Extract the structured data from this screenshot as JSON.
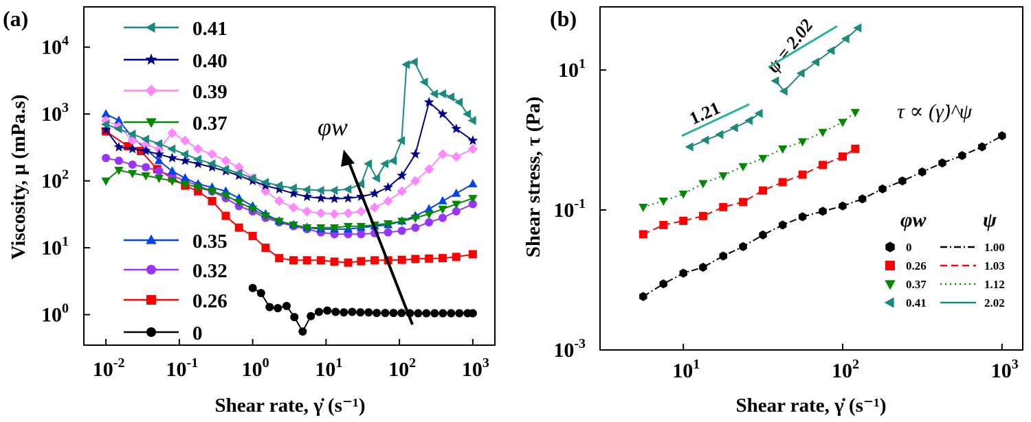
{
  "panels": {
    "a": {
      "label": "(a)"
    },
    "b": {
      "label": "(b)"
    }
  },
  "chart_data": [
    {
      "type": "scatter",
      "panel": "(a)",
      "xlabel": "Shear rate, γ̇ (s⁻¹)",
      "ylabel": "Viscosity, μ (mPa.s)",
      "xscale": "log",
      "yscale": "log",
      "xlim": [
        0.005,
        2000
      ],
      "ylim": [
        0.35,
        40000
      ],
      "xticks": [
        {
          "label": "10⁻²",
          "base": "10",
          "exp": "-2",
          "v": 0.01
        },
        {
          "label": "10⁻¹",
          "base": "10",
          "exp": "-1",
          "v": 0.1
        },
        {
          "label": "10⁰",
          "base": "10",
          "exp": "0",
          "v": 1
        },
        {
          "label": "10¹",
          "base": "10",
          "exp": "1",
          "v": 10
        },
        {
          "label": "10²",
          "base": "10",
          "exp": "2",
          "v": 100
        },
        {
          "label": "10³",
          "base": "10",
          "exp": "3",
          "v": 1000
        }
      ],
      "yticks": [
        {
          "label": "10⁰",
          "base": "10",
          "exp": "0",
          "v": 1
        },
        {
          "label": "10¹",
          "base": "10",
          "exp": "1",
          "v": 10
        },
        {
          "label": "10²",
          "base": "10",
          "exp": "2",
          "v": 100
        },
        {
          "label": "10³",
          "base": "10",
          "exp": "3",
          "v": 1000
        },
        {
          "label": "10⁴",
          "base": "10",
          "exp": "4",
          "v": 10000
        }
      ],
      "annotation": "φw",
      "legend_placement": "left",
      "series": [
        {
          "name": "0",
          "color": "#000000",
          "marker": "circle",
          "x": [
            1,
            1.3,
            1.7,
            2.2,
            2.9,
            3.7,
            4.8,
            6.2,
            8,
            10.4,
            13.5,
            17.5,
            22.7,
            29.4,
            38,
            49,
            64,
            83,
            107,
            139,
            180,
            233,
            302,
            391,
            506,
            656,
            850,
            1000
          ],
          "y": [
            2.5,
            2.1,
            1.3,
            1.25,
            1.35,
            0.92,
            0.56,
            0.95,
            1.1,
            1.15,
            1.1,
            1.08,
            1.1,
            1.08,
            1.08,
            1.06,
            1.06,
            1.06,
            1.06,
            1.05,
            1.05,
            1.05,
            1.05,
            1.05,
            1.05,
            1.05,
            1.05,
            1.05
          ]
        },
        {
          "name": "0.26",
          "color": "#ff0000",
          "marker": "square",
          "x": [
            0.01,
            0.02,
            0.03,
            0.05,
            0.08,
            0.12,
            0.18,
            0.28,
            0.43,
            0.65,
            1,
            1.5,
            2.3,
            3.6,
            5.5,
            8.5,
            13,
            20,
            30,
            46,
            70,
            108,
            165,
            253,
            388,
            595,
            1000
          ],
          "y": [
            550,
            330,
            280,
            150,
            110,
            85,
            70,
            50,
            30,
            20,
            15,
            10,
            7,
            6.5,
            6.5,
            6.5,
            6.2,
            6.0,
            6.3,
            6.5,
            6.5,
            6.6,
            6.8,
            6.9,
            7.0,
            7.3,
            8.0
          ]
        },
        {
          "name": "0.32",
          "color": "#9933ff",
          "marker": "circle",
          "x": [
            0.01,
            0.015,
            0.023,
            0.035,
            0.053,
            0.08,
            0.12,
            0.18,
            0.28,
            0.43,
            0.65,
            1,
            1.5,
            2.3,
            3.6,
            5.5,
            8.5,
            13,
            20,
            30,
            46,
            70,
            108,
            165,
            253,
            388,
            595,
            1000
          ],
          "y": [
            220,
            200,
            175,
            160,
            140,
            120,
            100,
            85,
            70,
            55,
            42,
            35,
            28,
            24,
            21,
            19,
            17,
            16,
            16,
            16,
            16.5,
            17,
            18,
            20,
            24,
            28,
            35,
            45
          ]
        },
        {
          "name": "0.35",
          "color": "#0044ee",
          "marker": "triangle-up",
          "x": [
            0.01,
            0.015,
            0.023,
            0.035,
            0.053,
            0.08,
            0.12,
            0.18,
            0.28,
            0.43,
            0.65,
            1,
            1.5,
            2.3,
            3.6,
            5.5,
            8.5,
            13,
            20,
            30,
            46,
            70,
            108,
            165,
            253,
            388,
            595,
            1000
          ],
          "y": [
            1000,
            800,
            450,
            300,
            200,
            140,
            110,
            90,
            80,
            70,
            55,
            42,
            32,
            25,
            22,
            20,
            19,
            19,
            19,
            20,
            21,
            22,
            25,
            30,
            38,
            50,
            65,
            90
          ]
        },
        {
          "name": "0.37",
          "color": "#008800",
          "marker": "triangle-down",
          "x": [
            0.01,
            0.015,
            0.023,
            0.035,
            0.053,
            0.08,
            0.12,
            0.18,
            0.28,
            0.43,
            0.65,
            1,
            1.5,
            2.3,
            3.6,
            5.5,
            8.5,
            13,
            20,
            30,
            46,
            70,
            108,
            165,
            253,
            388,
            595,
            1000
          ],
          "y": [
            100,
            145,
            130,
            120,
            110,
            100,
            90,
            80,
            70,
            60,
            48,
            38,
            30,
            25,
            22,
            20,
            20,
            20,
            21,
            21,
            22,
            23,
            25,
            28,
            32,
            38,
            45,
            55
          ]
        },
        {
          "name": "0.39",
          "color": "#ff88ff",
          "marker": "diamond",
          "x": [
            0.01,
            0.015,
            0.023,
            0.035,
            0.053,
            0.08,
            0.12,
            0.18,
            0.28,
            0.43,
            0.65,
            1,
            1.5,
            2.3,
            3.6,
            5.5,
            8.5,
            13,
            20,
            30,
            46,
            70,
            108,
            165,
            253,
            388,
            595,
            1000
          ],
          "y": [
            800,
            650,
            400,
            350,
            300,
            520,
            400,
            300,
            250,
            200,
            160,
            110,
            70,
            50,
            40,
            35,
            33,
            32,
            33,
            35,
            40,
            50,
            70,
            100,
            150,
            250,
            230,
            300
          ]
        },
        {
          "name": "0.40",
          "color": "#00008b",
          "marker": "star",
          "x": [
            0.01,
            0.015,
            0.023,
            0.035,
            0.053,
            0.08,
            0.12,
            0.18,
            0.28,
            0.43,
            0.65,
            1,
            1.5,
            2.3,
            3.6,
            5.5,
            8.5,
            13,
            20,
            30,
            46,
            70,
            108,
            165,
            253,
            388,
            595,
            1000
          ],
          "y": [
            580,
            320,
            300,
            280,
            250,
            220,
            200,
            180,
            160,
            140,
            120,
            100,
            85,
            75,
            65,
            58,
            55,
            54,
            55,
            58,
            65,
            80,
            120,
            250,
            1500,
            1000,
            600,
            400
          ]
        },
        {
          "name": "0.41",
          "color": "#1b8a7c",
          "marker": "triangle-left",
          "x": [
            0.01,
            0.015,
            0.023,
            0.035,
            0.053,
            0.08,
            0.12,
            0.18,
            0.28,
            0.43,
            0.65,
            1,
            1.5,
            2.3,
            3.6,
            5.5,
            8.5,
            13,
            20,
            30,
            38,
            49,
            64,
            83,
            107,
            125,
            160,
            220,
            302,
            391,
            506,
            656,
            850,
            1000
          ],
          "y": [
            700,
            600,
            500,
            420,
            360,
            300,
            250,
            210,
            180,
            150,
            130,
            110,
            95,
            85,
            78,
            74,
            72,
            72,
            75,
            90,
            180,
            110,
            180,
            200,
            400,
            5500,
            6000,
            3000,
            2000,
            2000,
            1800,
            1500,
            1000,
            800
          ]
        }
      ]
    },
    {
      "type": "scatter",
      "panel": "(b)",
      "xlabel": "Shear rate, γ̇ (s⁻¹)",
      "ylabel": "Shear stress, τ (Pa)",
      "xscale": "log",
      "yscale": "log",
      "xlim": [
        3,
        1350
      ],
      "ylim": [
        0.001,
        80
      ],
      "xticks": [
        {
          "label": "10¹",
          "base": "10",
          "exp": "1",
          "v": 10
        },
        {
          "label": "10²",
          "base": "10",
          "exp": "2",
          "v": 100
        },
        {
          "label": "10³",
          "base": "10",
          "exp": "3",
          "v": 1000
        }
      ],
      "yticks": [
        {
          "label": "10⁻³",
          "base": "10",
          "exp": "-3",
          "v": 0.001
        },
        {
          "label": "10⁻¹",
          "base": "10",
          "exp": "-1",
          "v": 0.1
        },
        {
          "label": "10¹",
          "base": "10",
          "exp": "1",
          "v": 10
        }
      ],
      "annotations": {
        "formula": "τ ∝ (γ̇)^ψ",
        "slope_low": "1.21",
        "slope_high": "ψ = 2.02"
      },
      "legend_placement": "bottom-right",
      "legend_headers": {
        "phi": "φw",
        "psi": "ψ"
      },
      "series": [
        {
          "name": "0",
          "psi": "1.00",
          "color": "#000000",
          "marker": "hexagon",
          "line": "dashdot",
          "x": [
            5.6,
            7.5,
            10,
            13.3,
            17.8,
            23.7,
            31.6,
            42,
            56,
            75,
            100,
            133,
            178,
            237,
            316,
            422,
            562,
            750,
            1000
          ],
          "y": [
            0.0058,
            0.0088,
            0.0125,
            0.0152,
            0.022,
            0.03,
            0.044,
            0.061,
            0.08,
            0.096,
            0.114,
            0.144,
            0.2,
            0.26,
            0.35,
            0.47,
            0.6,
            0.8,
            1.15
          ]
        },
        {
          "name": "0.26",
          "psi": "1.03",
          "color": "#ff0000",
          "marker": "square",
          "line": "dashed",
          "x": [
            5.6,
            7.5,
            10,
            13.3,
            17.8,
            23.7,
            31.6,
            42,
            56,
            75,
            100,
            120
          ],
          "y": [
            0.045,
            0.061,
            0.07,
            0.082,
            0.11,
            0.13,
            0.19,
            0.25,
            0.32,
            0.44,
            0.58,
            0.75
          ]
        },
        {
          "name": "0.37",
          "psi": "1.12",
          "color": "#008800",
          "marker": "triangle-down",
          "line": "dotted",
          "x": [
            5.6,
            7.5,
            10,
            13.3,
            17.8,
            23.7,
            31.6,
            42,
            56,
            75,
            100,
            120
          ],
          "y": [
            0.11,
            0.135,
            0.17,
            0.24,
            0.31,
            0.42,
            0.55,
            0.75,
            0.95,
            1.3,
            1.8,
            2.5
          ]
        },
        {
          "name": "0.41",
          "psi": "2.02",
          "color": "#1b8a7c",
          "marker": "triangle-left",
          "line": "solid",
          "x": [
            11,
            13.8,
            17,
            21,
            26,
            30,
            38,
            43,
            55,
            68,
            85,
            105,
            125
          ],
          "y": [
            0.8,
            1.0,
            1.2,
            1.5,
            1.9,
            2.4,
            7.0,
            5.0,
            9.0,
            13.0,
            19.0,
            28.0,
            40.0
          ]
        }
      ]
    }
  ]
}
